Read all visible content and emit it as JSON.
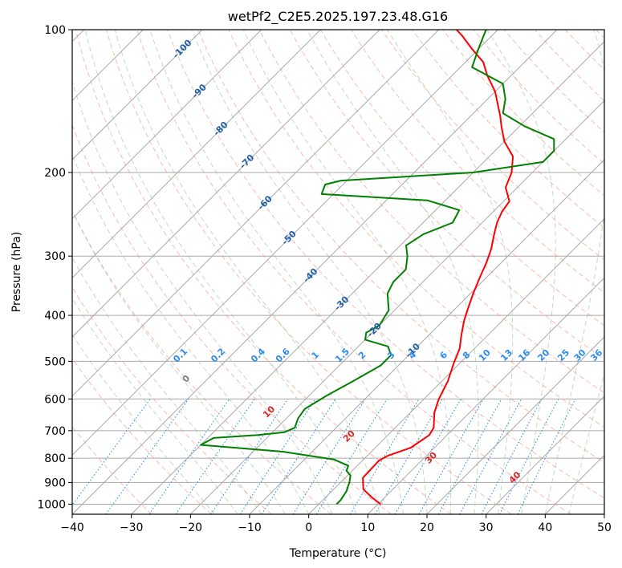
{
  "chart_data": {
    "type": "line",
    "title": "wetPf2_C2E5.2025.197.23.48.G16",
    "xlabel": "Temperature (°C)",
    "ylabel": "Pressure (hPa)",
    "xlim": [
      -40,
      50
    ],
    "ylim": [
      1050,
      100
    ],
    "y_scale": "log",
    "x_ticks": [
      -40,
      -30,
      -20,
      -10,
      0,
      10,
      20,
      30,
      40,
      50
    ],
    "y_ticks": [
      100,
      200,
      300,
      400,
      500,
      600,
      700,
      800,
      900,
      1000
    ],
    "grid": true,
    "skew_T": true,
    "colors": {
      "temperature": "#ff0000",
      "dewpoint": "#008000",
      "isotherm": "#a9a9a9",
      "dry_adiabat": "#fa8072",
      "moist_adiabat": "#8fbc8f",
      "mixing_ratio": "#1e88e5",
      "isotherm_label": "#1f5fa8",
      "mixing_ratio_label": "#2b8cf0",
      "adiabat_label": "#d62728"
    },
    "series": [
      {
        "key": "temperature",
        "points": [
          [
            10.5,
            1000
          ],
          [
            8,
            970
          ],
          [
            5,
            930
          ],
          [
            3,
            880
          ],
          [
            2.8,
            810
          ],
          [
            3.5,
            790
          ],
          [
            6,
            760
          ],
          [
            7,
            715
          ],
          [
            6.5,
            690
          ],
          [
            4,
            640
          ],
          [
            2.5,
            600
          ],
          [
            1,
            550
          ],
          [
            -1,
            505
          ],
          [
            -2.5,
            470
          ],
          [
            -4.5,
            440
          ],
          [
            -6.5,
            410
          ],
          [
            -8,
            385
          ],
          [
            -9.5,
            360
          ],
          [
            -11,
            335
          ],
          [
            -12.5,
            310
          ],
          [
            -14,
            290
          ],
          [
            -16,
            270
          ],
          [
            -17.5,
            255
          ],
          [
            -18.5,
            242
          ],
          [
            -19,
            230
          ],
          [
            -22,
            215
          ],
          [
            -23.5,
            200
          ],
          [
            -26,
            185
          ],
          [
            -30,
            172
          ],
          [
            -33,
            160
          ],
          [
            -35,
            152
          ],
          [
            -37,
            145
          ],
          [
            -40,
            135
          ],
          [
            -44,
            125
          ],
          [
            -47,
            117
          ],
          [
            -51,
            110
          ],
          [
            -55,
            103
          ],
          [
            -57,
            100
          ]
        ]
      },
      {
        "key": "dewpoint",
        "points": [
          [
            3,
            1000
          ],
          [
            3,
            980
          ],
          [
            2.5,
            940
          ],
          [
            1.5,
            900
          ],
          [
            0.5,
            870
          ],
          [
            -1,
            850
          ],
          [
            -1.5,
            830
          ],
          [
            -5,
            805
          ],
          [
            -15,
            775
          ],
          [
            -30,
            750
          ],
          [
            -29,
            725
          ],
          [
            -22,
            715
          ],
          [
            -18,
            705
          ],
          [
            -17,
            690
          ],
          [
            -18,
            660
          ],
          [
            -18.5,
            630
          ],
          [
            -17,
            590
          ],
          [
            -15,
            550
          ],
          [
            -13,
            510
          ],
          [
            -13,
            485
          ],
          [
            -15,
            465
          ],
          [
            -20,
            450
          ],
          [
            -21,
            435
          ],
          [
            -20,
            420
          ],
          [
            -21,
            390
          ],
          [
            -24,
            360
          ],
          [
            -25,
            340
          ],
          [
            -25,
            320
          ],
          [
            -27,
            300
          ],
          [
            -29,
            285
          ],
          [
            -28,
            270
          ],
          [
            -25,
            255
          ],
          [
            -26,
            240
          ],
          [
            -33,
            229
          ],
          [
            -52,
            222
          ],
          [
            -53,
            212
          ],
          [
            -51,
            208
          ],
          [
            -30,
            200
          ],
          [
            -20,
            190
          ],
          [
            -20,
            180
          ],
          [
            -22,
            170
          ],
          [
            -29,
            160
          ],
          [
            -35,
            150
          ],
          [
            -37,
            140
          ],
          [
            -40,
            130
          ],
          [
            -48,
            120
          ],
          [
            -50,
            110
          ],
          [
            -52,
            100
          ]
        ]
      }
    ],
    "isotherm_labels": [
      -100,
      -90,
      -80,
      -70,
      -60,
      -50,
      -40,
      -30,
      -20,
      -10
    ],
    "mixing_ratio_labels": [
      "0.1",
      "0.2",
      "0.4",
      "0.6",
      "1",
      "1.5",
      "2",
      "3",
      "4",
      "6",
      "8",
      "10",
      "13",
      "16",
      "20",
      "25",
      "30",
      "36"
    ],
    "dry_adiabat_labels": [
      "0",
      "10",
      "20",
      "30",
      "40"
    ]
  }
}
